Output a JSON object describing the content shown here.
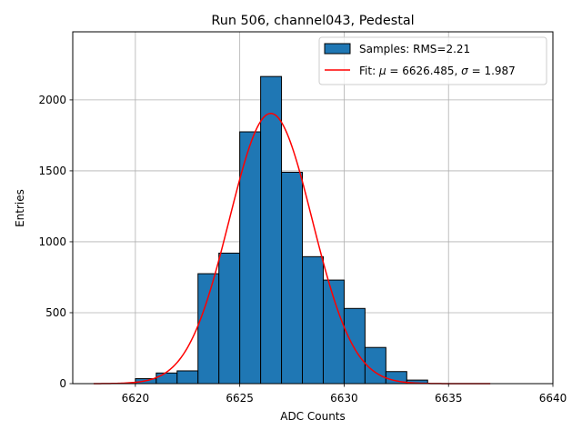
{
  "chart_data": {
    "type": "bar",
    "title": "Run 506, channel043, Pedestal",
    "xlabel": "ADC Counts",
    "ylabel": "Entries",
    "xlim": [
      6617.0,
      6640.0
    ],
    "ylim": [
      0,
      2480
    ],
    "grid": true,
    "legend_position": "top-right",
    "x_ticks": [
      6620,
      6625,
      6630,
      6635,
      6640
    ],
    "y_ticks": [
      0,
      500,
      1000,
      1500,
      2000
    ],
    "bin_width": 1.0,
    "bin_edges": [
      6620,
      6621,
      6622,
      6623,
      6624,
      6625,
      6626,
      6627,
      6628,
      6629,
      6630,
      6631,
      6632,
      6633,
      6634
    ],
    "values": [
      35,
      75,
      90,
      775,
      920,
      1775,
      2165,
      1490,
      895,
      730,
      530,
      255,
      85,
      25
    ],
    "bar_color": "#1f77b4",
    "bar_edge_color": "#000000",
    "fit": {
      "type": "gaussian",
      "mu": 6626.485,
      "sigma": 1.987,
      "amplitude": 1905,
      "x_range": [
        6618.0,
        6637.0
      ],
      "color": "#ff0000"
    },
    "legend": [
      {
        "label": "Samples: RMS=2.21",
        "kind": "patch",
        "color": "#1f77b4"
      },
      {
        "label_prefix": "Fit: ",
        "mu_symbol": "μ",
        "mu_text": " = 6626.485, ",
        "sigma_symbol": "σ",
        "sigma_text": " = 1.987",
        "kind": "line",
        "color": "#ff0000"
      }
    ]
  }
}
